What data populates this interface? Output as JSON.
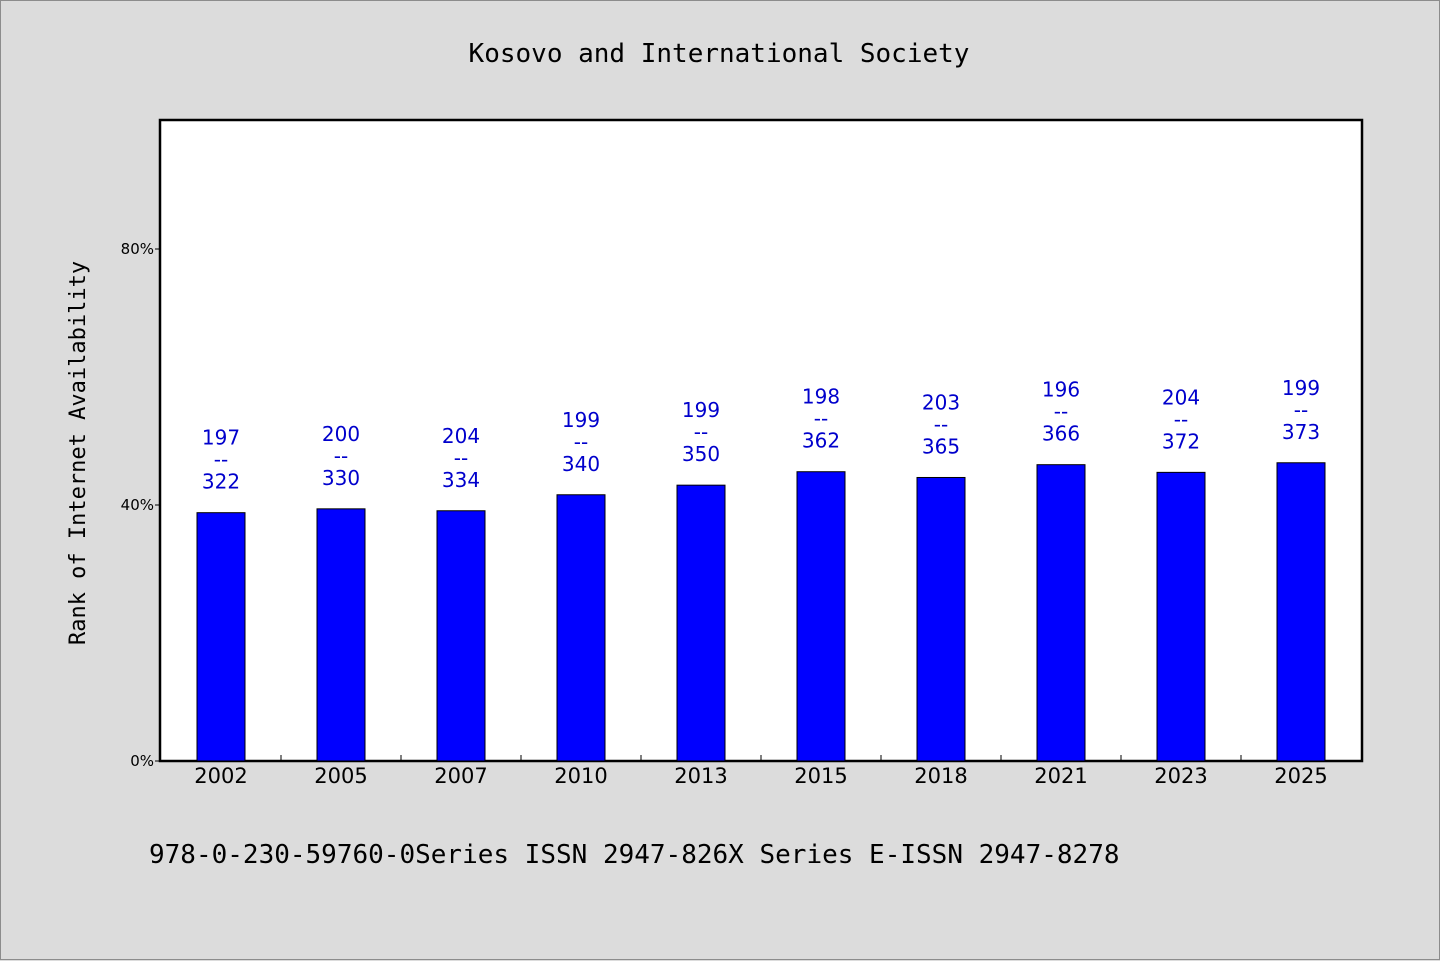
{
  "chart_data": {
    "type": "bar",
    "title": "Kosovo and International Society",
    "ylabel": "Rank of Internet Availability",
    "xlabel": "",
    "ylim": [
      0,
      100
    ],
    "yticks": [
      0,
      40,
      80
    ],
    "ytick_labels": [
      "0%",
      "40%",
      "80%"
    ],
    "categories": [
      "2002",
      "2005",
      "2007",
      "2010",
      "2013",
      "2015",
      "2018",
      "2021",
      "2023",
      "2025"
    ],
    "values": [
      38.8,
      39.4,
      39.1,
      41.6,
      43.1,
      45.2,
      44.3,
      46.3,
      45.1,
      46.6
    ],
    "labels_top": [
      "197",
      "200",
      "204",
      "199",
      "199",
      "198",
      "203",
      "196",
      "204",
      "199"
    ],
    "labels_bottom": [
      "322",
      "330",
      "334",
      "340",
      "350",
      "362",
      "365",
      "366",
      "372",
      "373"
    ],
    "label_separator": "--",
    "bar_color": "#0000ff",
    "label_color": "#0000cc",
    "grid": false
  },
  "footer": "978-0-230-59760-0Series ISSN 2947-826X Series E-ISSN 2947-8278"
}
